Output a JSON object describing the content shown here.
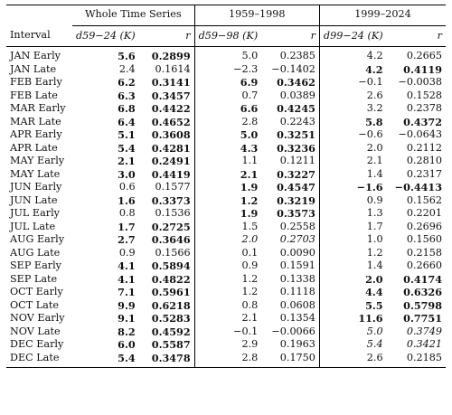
{
  "headers": {
    "group_whole": "Whole Time Series",
    "group_1959": "1959–1998",
    "group_1999": "1999–2024",
    "interval": "Interval",
    "d1": "d59−24 (K)",
    "r1": "r",
    "d2": "d59−98 (K)",
    "r2": "r",
    "d3": "d99−24 (K)",
    "r3": "r"
  },
  "rows": [
    {
      "label": "JAN Early",
      "d1": "5.6",
      "r1": "0.2899",
      "d2": "5.0",
      "r2": "0.2385",
      "d3": "4.2",
      "r3": "0.2665"
    },
    {
      "label": "JAN Late",
      "d1": "2.4",
      "r1": "0.1614",
      "d2": "−2.3",
      "r2": "−0.1402",
      "d3": "4.2",
      "r3": "0.4119"
    },
    {
      "label": "FEB Early",
      "d1": "6.2",
      "r1": "0.3141",
      "d2": "6.9",
      "r2": "0.3462",
      "d3": "−0.1",
      "r3": "−0.0038"
    },
    {
      "label": "FEB Late",
      "d1": "6.3",
      "r1": "0.3457",
      "d2": "0.7",
      "r2": "0.0389",
      "d3": "2.6",
      "r3": "0.1528"
    },
    {
      "label": "MAR Early",
      "d1": "6.8",
      "r1": "0.4422",
      "d2": "6.6",
      "r2": "0.4245",
      "d3": "3.2",
      "r3": "0.2378"
    },
    {
      "label": "MAR Late",
      "d1": "6.4",
      "r1": "0.4652",
      "d2": "2.8",
      "r2": "0.2243",
      "d3": "5.8",
      "r3": "0.4372"
    },
    {
      "label": "APR Early",
      "d1": "5.1",
      "r1": "0.3608",
      "d2": "5.0",
      "r2": "0.3251",
      "d3": "−0.6",
      "r3": "−0.0643"
    },
    {
      "label": "APR Late",
      "d1": "5.4",
      "r1": "0.4281",
      "d2": "4.3",
      "r2": "0.3236",
      "d3": "2.0",
      "r3": "0.2112"
    },
    {
      "label": "MAY Early",
      "d1": "2.1",
      "r1": "0.2491",
      "d2": "1.1",
      "r2": "0.1211",
      "d3": "2.1",
      "r3": "0.2810"
    },
    {
      "label": "MAY Late",
      "d1": "3.0",
      "r1": "0.4419",
      "d2": "2.1",
      "r2": "0.3227",
      "d3": "1.4",
      "r3": "0.2317"
    },
    {
      "label": "JUN Early",
      "d1": "0.6",
      "r1": "0.1577",
      "d2": "1.9",
      "r2": "0.4547",
      "d3": "−1.6",
      "r3": "−0.4413"
    },
    {
      "label": "JUN Late",
      "d1": "1.6",
      "r1": "0.3373",
      "d2": "1.2",
      "r2": "0.3219",
      "d3": "0.9",
      "r3": "0.1562"
    },
    {
      "label": "JUL Early",
      "d1": "0.8",
      "r1": "0.1536",
      "d2": "1.9",
      "r2": "0.3573",
      "d3": "1.3",
      "r3": "0.2201"
    },
    {
      "label": "JUL Late",
      "d1": "1.7",
      "r1": "0.2725",
      "d2": "1.5",
      "r2": "0.2558",
      "d3": "1.7",
      "r3": "0.2696"
    },
    {
      "label": "AUG Early",
      "d1": "2.7",
      "r1": "0.3646",
      "d2": "2.0",
      "r2": "0.2703",
      "d3": "1.0",
      "r3": "0.1560"
    },
    {
      "label": "AUG Late",
      "d1": "0.9",
      "r1": "0.1566",
      "d2": "0.1",
      "r2": "0.0090",
      "d3": "1.2",
      "r3": "0.2158"
    },
    {
      "label": "SEP Early",
      "d1": "4.1",
      "r1": "0.5894",
      "d2": "0.9",
      "r2": "0.1591",
      "d3": "1.4",
      "r3": "0.2660"
    },
    {
      "label": "SEP Late",
      "d1": "4.1",
      "r1": "0.4822",
      "d2": "1.2",
      "r2": "0.1338",
      "d3": "2.0",
      "r3": "0.4174"
    },
    {
      "label": "OCT Early",
      "d1": "7.1",
      "r1": "0.5961",
      "d2": "1.2",
      "r2": "0.1118",
      "d3": "4.4",
      "r3": "0.6326"
    },
    {
      "label": "OCT Late",
      "d1": "9.9",
      "r1": "0.6218",
      "d2": "0.8",
      "r2": "0.0608",
      "d3": "5.5",
      "r3": "0.5798"
    },
    {
      "label": "NOV Early",
      "d1": "9.1",
      "r1": "0.5283",
      "d2": "2.1",
      "r2": "0.1354",
      "d3": "11.6",
      "r3": "0.7751"
    },
    {
      "label": "NOV Late",
      "d1": "8.2",
      "r1": "0.4592",
      "d2": "−0.1",
      "r2": "−0.0066",
      "d3": "5.0",
      "r3": "0.3749"
    },
    {
      "label": "DEC Early",
      "d1": "6.0",
      "r1": "0.5587",
      "d2": "2.9",
      "r2": "0.1963",
      "d3": "5.4",
      "r3": "0.3421"
    },
    {
      "label": "DEC Late",
      "d1": "5.4",
      "r1": "0.3478",
      "d2": "2.8",
      "r2": "0.1750",
      "d3": "2.6",
      "r3": "0.2185"
    }
  ],
  "styles": {
    "JAN Early": {
      "d1": "b",
      "r1": "b"
    },
    "JAN Late": {
      "d3": "b",
      "r3": "b"
    },
    "FEB Early": {
      "d1": "b",
      "r1": "b",
      "d2": "b",
      "r2": "b"
    },
    "FEB Late": {
      "d1": "b",
      "r1": "b"
    },
    "MAR Early": {
      "d1": "b",
      "r1": "b",
      "d2": "b",
      "r2": "b"
    },
    "MAR Late": {
      "d1": "b",
      "r1": "b",
      "d3": "b",
      "r3": "b"
    },
    "APR Early": {
      "d1": "b",
      "r1": "b",
      "d2": "b",
      "r2": "b"
    },
    "APR Late": {
      "d1": "b",
      "r1": "b",
      "d2": "b",
      "r2": "b"
    },
    "MAY Early": {
      "d1": "b",
      "r1": "b"
    },
    "MAY Late": {
      "d1": "b",
      "r1": "b",
      "d2": "b",
      "r2": "b"
    },
    "JUN Early": {
      "d2": "b",
      "r2": "b",
      "d3": "b",
      "r3": "b"
    },
    "JUN Late": {
      "d1": "b",
      "r1": "b",
      "d2": "b",
      "r2": "b"
    },
    "JUL Early": {
      "d2": "b",
      "r2": "b"
    },
    "JUL Late": {
      "d1": "b",
      "r1": "b"
    },
    "AUG Early": {
      "d1": "b",
      "r1": "b",
      "d2": "i",
      "r2": "i"
    },
    "SEP Early": {
      "d1": "b",
      "r1": "b"
    },
    "SEP Late": {
      "d1": "b",
      "r1": "b",
      "d3": "b",
      "r3": "b"
    },
    "OCT Early": {
      "d1": "b",
      "r1": "b",
      "d3": "b",
      "r3": "b"
    },
    "OCT Late": {
      "d1": "b",
      "r1": "b",
      "d3": "b",
      "r3": "b"
    },
    "NOV Early": {
      "d1": "b",
      "r1": "b",
      "d3": "b",
      "r3": "b"
    },
    "NOV Late": {
      "d1": "b",
      "r1": "b",
      "d3": "i",
      "r3": "i"
    },
    "DEC Early": {
      "d1": "b",
      "r1": "b",
      "d3": "i",
      "r3": "i"
    },
    "DEC Late": {
      "d1": "b",
      "r1": "b"
    }
  }
}
